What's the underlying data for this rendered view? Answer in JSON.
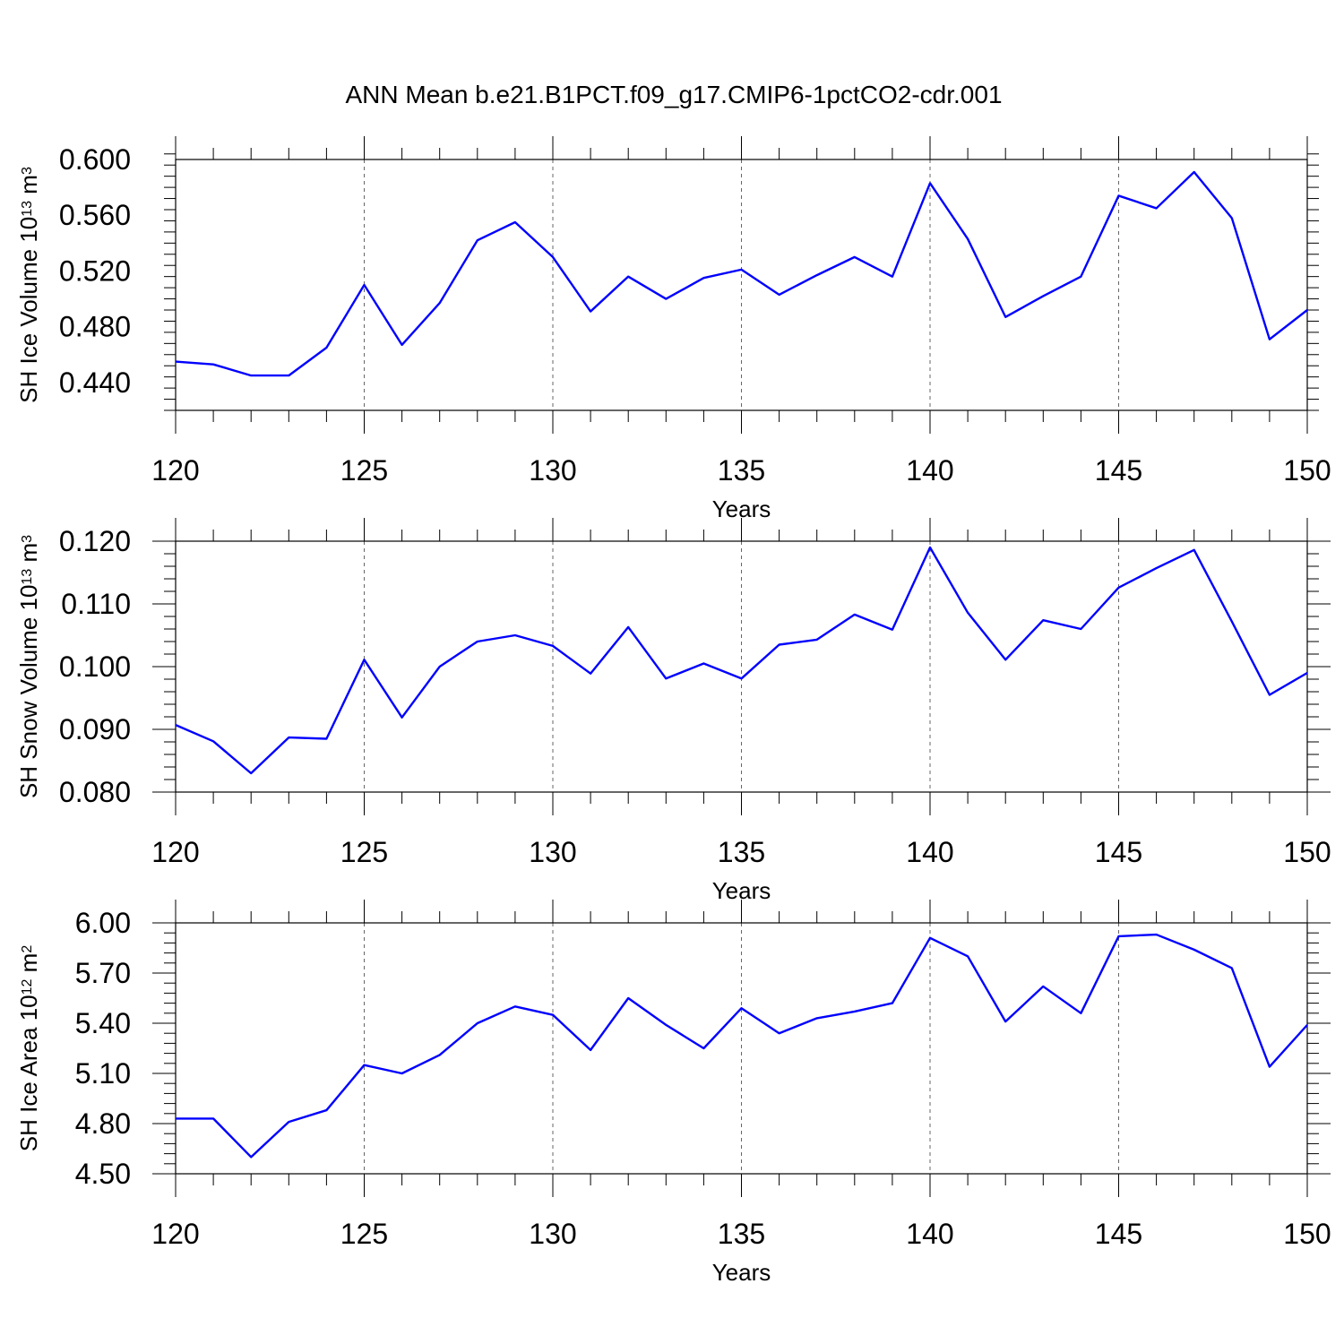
{
  "figure": {
    "title": "ANN Mean b.e21.B1PCT.f09_g17.CMIP6-1pctCO2-cdr.001"
  },
  "chart_data": [
    {
      "type": "line",
      "xlabel": "Years",
      "ylabel": "SH Ice Volume 10",
      "ylabel_sup": "13",
      "ylabel_unit": " m",
      "ylabel_unit_sup": "3",
      "xlim": [
        120,
        150
      ],
      "ylim": [
        0.42,
        0.6
      ],
      "xticks": [
        120,
        125,
        130,
        135,
        140,
        145,
        150
      ],
      "xtick_labels": [
        "120",
        "125",
        "130",
        "135",
        "140",
        "145",
        "150"
      ],
      "yticks": [
        0.44,
        0.48,
        0.52,
        0.56,
        0.6
      ],
      "ytick_labels": [
        "0.440",
        "0.480",
        "0.520",
        "0.560",
        "0.600"
      ],
      "grid": "vertical dashed at major x ticks",
      "series": [
        {
          "color": "#0000ff",
          "x": [
            120,
            121,
            122,
            123,
            124,
            125,
            126,
            127,
            128,
            129,
            130,
            131,
            132,
            133,
            134,
            135,
            136,
            137,
            138,
            139,
            140,
            141,
            142,
            143,
            144,
            145,
            146,
            147,
            148,
            149,
            150
          ],
          "y": [
            0.455,
            0.453,
            0.445,
            0.445,
            0.465,
            0.51,
            0.467,
            0.497,
            0.542,
            0.555,
            0.53,
            0.491,
            0.516,
            0.5,
            0.515,
            0.521,
            0.503,
            0.517,
            0.53,
            0.516,
            0.583,
            0.543,
            0.487,
            0.502,
            0.516,
            0.574,
            0.565,
            0.591,
            0.558,
            0.471,
            0.492
          ]
        }
      ]
    },
    {
      "type": "line",
      "xlabel": "Years",
      "ylabel": "SH Snow Volume 10",
      "ylabel_sup": "13",
      "ylabel_unit": " m",
      "ylabel_unit_sup": "3",
      "xlim": [
        120,
        150
      ],
      "ylim": [
        0.08,
        0.12
      ],
      "xticks": [
        120,
        125,
        130,
        135,
        140,
        145,
        150
      ],
      "xtick_labels": [
        "120",
        "125",
        "130",
        "135",
        "140",
        "145",
        "150"
      ],
      "yticks": [
        0.08,
        0.09,
        0.1,
        0.11,
        0.12
      ],
      "ytick_labels": [
        "0.080",
        "0.090",
        "0.100",
        "0.110",
        "0.120"
      ],
      "grid": "vertical dashed at major x ticks",
      "series": [
        {
          "color": "#0000ff",
          "x": [
            120,
            121,
            122,
            123,
            124,
            125,
            126,
            127,
            128,
            129,
            130,
            131,
            132,
            133,
            134,
            135,
            136,
            137,
            138,
            139,
            140,
            141,
            142,
            143,
            144,
            145,
            146,
            147,
            148,
            149,
            150
          ],
          "y": [
            0.0907,
            0.0881,
            0.083,
            0.0887,
            0.0885,
            0.1011,
            0.0919,
            0.1,
            0.104,
            0.105,
            0.1033,
            0.0989,
            0.1063,
            0.0981,
            0.1005,
            0.0981,
            0.1035,
            0.1043,
            0.1083,
            0.1059,
            0.119,
            0.1086,
            0.1011,
            0.1074,
            0.106,
            0.1126,
            0.1157,
            0.1186,
            0.1072,
            0.0955,
            0.099
          ]
        }
      ]
    },
    {
      "type": "line",
      "xlabel": "Years",
      "ylabel": "SH Ice Area 10",
      "ylabel_sup": "12",
      "ylabel_unit": " m",
      "ylabel_unit_sup": "2",
      "xlim": [
        120,
        150
      ],
      "ylim": [
        4.5,
        6.0
      ],
      "xticks": [
        120,
        125,
        130,
        135,
        140,
        145,
        150
      ],
      "xtick_labels": [
        "120",
        "125",
        "130",
        "135",
        "140",
        "145",
        "150"
      ],
      "yticks": [
        4.5,
        4.8,
        5.1,
        5.4,
        5.7,
        6.0
      ],
      "ytick_labels": [
        "4.50",
        "4.80",
        "5.10",
        "5.40",
        "5.70",
        "6.00"
      ],
      "grid": "vertical dashed at major x ticks",
      "series": [
        {
          "color": "#0000ff",
          "x": [
            120,
            121,
            122,
            123,
            124,
            125,
            126,
            127,
            128,
            129,
            130,
            131,
            132,
            133,
            134,
            135,
            136,
            137,
            138,
            139,
            140,
            141,
            142,
            143,
            144,
            145,
            146,
            147,
            148,
            149,
            150
          ],
          "y": [
            4.83,
            4.83,
            4.6,
            4.81,
            4.88,
            5.15,
            5.1,
            5.21,
            5.4,
            5.5,
            5.45,
            5.24,
            5.55,
            5.39,
            5.25,
            5.49,
            5.34,
            5.43,
            5.47,
            5.52,
            5.91,
            5.8,
            5.41,
            5.62,
            5.46,
            5.92,
            5.93,
            5.84,
            5.73,
            5.14,
            5.39
          ]
        }
      ]
    }
  ]
}
